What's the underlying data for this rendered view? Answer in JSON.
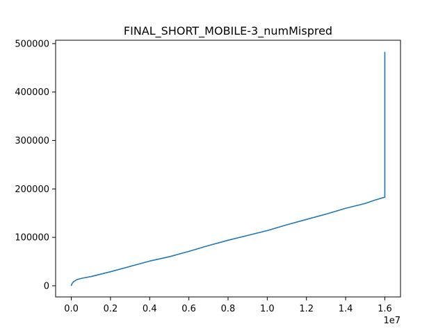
{
  "chart_data": {
    "type": "line",
    "title": "FINAL_SHORT_MOBILE-3_numMispred",
    "xlabel": "",
    "ylabel": "",
    "x_offset_label": "1e7",
    "xlim": [
      -0.08,
      1.68
    ],
    "ylim": [
      -23000,
      507000
    ],
    "x_ticks": [
      0.0,
      0.2,
      0.4,
      0.6,
      0.8,
      1.0,
      1.2,
      1.4,
      1.6
    ],
    "x_tick_labels": [
      "0.0",
      "0.2",
      "0.4",
      "0.6",
      "0.8",
      "1.0",
      "1.2",
      "1.4",
      "1.6"
    ],
    "y_ticks": [
      0,
      100000,
      200000,
      300000,
      400000,
      500000
    ],
    "y_tick_labels": [
      "0",
      "100000",
      "200000",
      "300000",
      "400000",
      "500000"
    ],
    "grid": false,
    "series": [
      {
        "color": "#1f77b4",
        "x": [
          0.0,
          0.003,
          0.01,
          0.03,
          0.06,
          0.1,
          0.2,
          0.3,
          0.4,
          0.5,
          0.6,
          0.7,
          0.8,
          0.9,
          1.0,
          1.1,
          1.2,
          1.3,
          1.4,
          1.5,
          1.55,
          1.6,
          1.6
        ],
        "y": [
          0,
          4000,
          8000,
          13000,
          16000,
          19000,
          29000,
          40000,
          51000,
          60000,
          71000,
          83000,
          94000,
          104000,
          114000,
          126000,
          137000,
          148000,
          160000,
          170000,
          177000,
          183000,
          483000
        ]
      }
    ]
  }
}
